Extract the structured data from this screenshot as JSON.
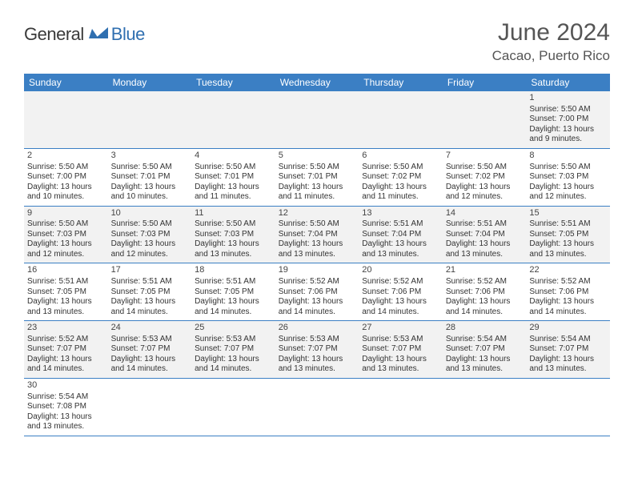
{
  "logo": {
    "text_dark": "General",
    "text_blue": "Blue",
    "icon_fill": "#2f6fb0"
  },
  "title": "June 2024",
  "location": "Cacao, Puerto Rico",
  "colors": {
    "header_bg": "#3b7fc4",
    "header_text": "#ffffff",
    "row_even_bg": "#f2f2f2",
    "row_odd_bg": "#ffffff",
    "cell_border": "#3b7fc4",
    "body_text": "#333333",
    "title_text": "#555555"
  },
  "weekdays": [
    "Sunday",
    "Monday",
    "Tuesday",
    "Wednesday",
    "Thursday",
    "Friday",
    "Saturday"
  ],
  "weeks": [
    [
      null,
      null,
      null,
      null,
      null,
      null,
      {
        "day": "1",
        "sunrise": "Sunrise: 5:50 AM",
        "sunset": "Sunset: 7:00 PM",
        "daylight1": "Daylight: 13 hours",
        "daylight2": "and 9 minutes."
      }
    ],
    [
      {
        "day": "2",
        "sunrise": "Sunrise: 5:50 AM",
        "sunset": "Sunset: 7:00 PM",
        "daylight1": "Daylight: 13 hours",
        "daylight2": "and 10 minutes."
      },
      {
        "day": "3",
        "sunrise": "Sunrise: 5:50 AM",
        "sunset": "Sunset: 7:01 PM",
        "daylight1": "Daylight: 13 hours",
        "daylight2": "and 10 minutes."
      },
      {
        "day": "4",
        "sunrise": "Sunrise: 5:50 AM",
        "sunset": "Sunset: 7:01 PM",
        "daylight1": "Daylight: 13 hours",
        "daylight2": "and 11 minutes."
      },
      {
        "day": "5",
        "sunrise": "Sunrise: 5:50 AM",
        "sunset": "Sunset: 7:01 PM",
        "daylight1": "Daylight: 13 hours",
        "daylight2": "and 11 minutes."
      },
      {
        "day": "6",
        "sunrise": "Sunrise: 5:50 AM",
        "sunset": "Sunset: 7:02 PM",
        "daylight1": "Daylight: 13 hours",
        "daylight2": "and 11 minutes."
      },
      {
        "day": "7",
        "sunrise": "Sunrise: 5:50 AM",
        "sunset": "Sunset: 7:02 PM",
        "daylight1": "Daylight: 13 hours",
        "daylight2": "and 12 minutes."
      },
      {
        "day": "8",
        "sunrise": "Sunrise: 5:50 AM",
        "sunset": "Sunset: 7:03 PM",
        "daylight1": "Daylight: 13 hours",
        "daylight2": "and 12 minutes."
      }
    ],
    [
      {
        "day": "9",
        "sunrise": "Sunrise: 5:50 AM",
        "sunset": "Sunset: 7:03 PM",
        "daylight1": "Daylight: 13 hours",
        "daylight2": "and 12 minutes."
      },
      {
        "day": "10",
        "sunrise": "Sunrise: 5:50 AM",
        "sunset": "Sunset: 7:03 PM",
        "daylight1": "Daylight: 13 hours",
        "daylight2": "and 12 minutes."
      },
      {
        "day": "11",
        "sunrise": "Sunrise: 5:50 AM",
        "sunset": "Sunset: 7:03 PM",
        "daylight1": "Daylight: 13 hours",
        "daylight2": "and 13 minutes."
      },
      {
        "day": "12",
        "sunrise": "Sunrise: 5:50 AM",
        "sunset": "Sunset: 7:04 PM",
        "daylight1": "Daylight: 13 hours",
        "daylight2": "and 13 minutes."
      },
      {
        "day": "13",
        "sunrise": "Sunrise: 5:51 AM",
        "sunset": "Sunset: 7:04 PM",
        "daylight1": "Daylight: 13 hours",
        "daylight2": "and 13 minutes."
      },
      {
        "day": "14",
        "sunrise": "Sunrise: 5:51 AM",
        "sunset": "Sunset: 7:04 PM",
        "daylight1": "Daylight: 13 hours",
        "daylight2": "and 13 minutes."
      },
      {
        "day": "15",
        "sunrise": "Sunrise: 5:51 AM",
        "sunset": "Sunset: 7:05 PM",
        "daylight1": "Daylight: 13 hours",
        "daylight2": "and 13 minutes."
      }
    ],
    [
      {
        "day": "16",
        "sunrise": "Sunrise: 5:51 AM",
        "sunset": "Sunset: 7:05 PM",
        "daylight1": "Daylight: 13 hours",
        "daylight2": "and 13 minutes."
      },
      {
        "day": "17",
        "sunrise": "Sunrise: 5:51 AM",
        "sunset": "Sunset: 7:05 PM",
        "daylight1": "Daylight: 13 hours",
        "daylight2": "and 14 minutes."
      },
      {
        "day": "18",
        "sunrise": "Sunrise: 5:51 AM",
        "sunset": "Sunset: 7:05 PM",
        "daylight1": "Daylight: 13 hours",
        "daylight2": "and 14 minutes."
      },
      {
        "day": "19",
        "sunrise": "Sunrise: 5:52 AM",
        "sunset": "Sunset: 7:06 PM",
        "daylight1": "Daylight: 13 hours",
        "daylight2": "and 14 minutes."
      },
      {
        "day": "20",
        "sunrise": "Sunrise: 5:52 AM",
        "sunset": "Sunset: 7:06 PM",
        "daylight1": "Daylight: 13 hours",
        "daylight2": "and 14 minutes."
      },
      {
        "day": "21",
        "sunrise": "Sunrise: 5:52 AM",
        "sunset": "Sunset: 7:06 PM",
        "daylight1": "Daylight: 13 hours",
        "daylight2": "and 14 minutes."
      },
      {
        "day": "22",
        "sunrise": "Sunrise: 5:52 AM",
        "sunset": "Sunset: 7:06 PM",
        "daylight1": "Daylight: 13 hours",
        "daylight2": "and 14 minutes."
      }
    ],
    [
      {
        "day": "23",
        "sunrise": "Sunrise: 5:52 AM",
        "sunset": "Sunset: 7:07 PM",
        "daylight1": "Daylight: 13 hours",
        "daylight2": "and 14 minutes."
      },
      {
        "day": "24",
        "sunrise": "Sunrise: 5:53 AM",
        "sunset": "Sunset: 7:07 PM",
        "daylight1": "Daylight: 13 hours",
        "daylight2": "and 14 minutes."
      },
      {
        "day": "25",
        "sunrise": "Sunrise: 5:53 AM",
        "sunset": "Sunset: 7:07 PM",
        "daylight1": "Daylight: 13 hours",
        "daylight2": "and 14 minutes."
      },
      {
        "day": "26",
        "sunrise": "Sunrise: 5:53 AM",
        "sunset": "Sunset: 7:07 PM",
        "daylight1": "Daylight: 13 hours",
        "daylight2": "and 13 minutes."
      },
      {
        "day": "27",
        "sunrise": "Sunrise: 5:53 AM",
        "sunset": "Sunset: 7:07 PM",
        "daylight1": "Daylight: 13 hours",
        "daylight2": "and 13 minutes."
      },
      {
        "day": "28",
        "sunrise": "Sunrise: 5:54 AM",
        "sunset": "Sunset: 7:07 PM",
        "daylight1": "Daylight: 13 hours",
        "daylight2": "and 13 minutes."
      },
      {
        "day": "29",
        "sunrise": "Sunrise: 5:54 AM",
        "sunset": "Sunset: 7:07 PM",
        "daylight1": "Daylight: 13 hours",
        "daylight2": "and 13 minutes."
      }
    ],
    [
      {
        "day": "30",
        "sunrise": "Sunrise: 5:54 AM",
        "sunset": "Sunset: 7:08 PM",
        "daylight1": "Daylight: 13 hours",
        "daylight2": "and 13 minutes."
      },
      null,
      null,
      null,
      null,
      null,
      null
    ]
  ]
}
